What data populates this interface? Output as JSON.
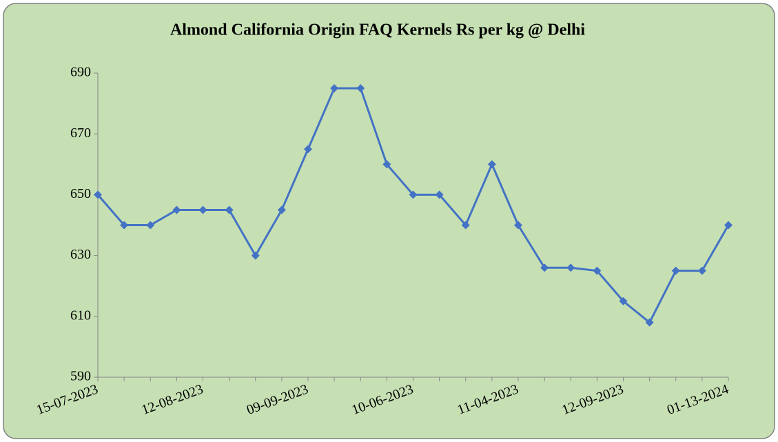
{
  "chart_data": {
    "type": "line",
    "title": "Almond California Origin FAQ Kernels Rs per kg @ Delhi",
    "categories": [
      "15-07-2023",
      null,
      null,
      null,
      "12-08-2023",
      null,
      null,
      null,
      "09-09-2023",
      null,
      null,
      null,
      "10-06-2023",
      null,
      null,
      null,
      "11-04-2023",
      null,
      null,
      null,
      "12-09-2023",
      null,
      null,
      null,
      "01-13-2024"
    ],
    "series": [
      {
        "name": "Almond California Origin FAQ Kernels",
        "color": "#4472c4",
        "values": [
          650,
          640,
          640,
          645,
          645,
          645,
          630,
          645,
          665,
          685,
          685,
          660,
          650,
          650,
          640,
          660,
          640,
          626,
          626,
          625,
          615,
          608,
          625,
          625,
          640
        ]
      }
    ],
    "ylim": [
      590,
      690
    ],
    "yticks": [
      590,
      610,
      630,
      650,
      670,
      690
    ],
    "grid": false
  }
}
